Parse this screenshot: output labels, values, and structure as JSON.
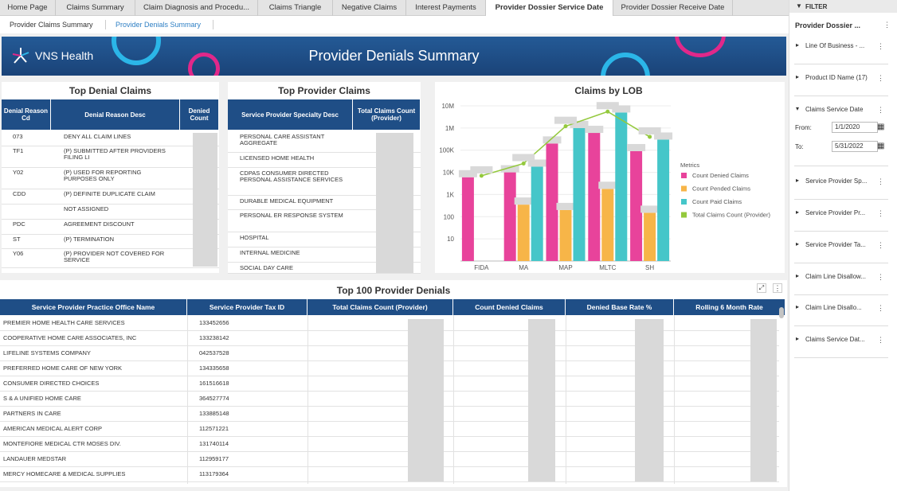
{
  "tabs": [
    "Home Page",
    "Claims Summary",
    "Claim Diagnosis and Procedu...",
    "Claims Triangle",
    "Negative Claims",
    "Interest Payments",
    "Provider Dossier Service Date",
    "Provider Dossier Receive Date"
  ],
  "subtabs": [
    "Provider Claims Summary",
    "Provider Denials Summary"
  ],
  "banner": {
    "logo": "VNS Health",
    "title": "Provider Denials Summary"
  },
  "top_denial": {
    "title": "Top Denial Claims",
    "headers": [
      "Denial Reason Cd",
      "Denial Reason Desc",
      "Denied Count"
    ],
    "rows": [
      {
        "cd": "073",
        "desc": "DENY ALL CLAIM LINES"
      },
      {
        "cd": "TF1",
        "desc": "(P) SUBMITTED AFTER PROVIDERS FILING LI"
      },
      {
        "cd": "Y02",
        "desc": "(P) USED FOR REPORTING PURPOSES ONLY"
      },
      {
        "cd": "CDD",
        "desc": "(P) DEFINITE DUPLICATE CLAIM"
      },
      {
        "cd": "",
        "desc": "NOT ASSIGNED"
      },
      {
        "cd": "PDC",
        "desc": "AGREEMENT DISCOUNT"
      },
      {
        "cd": "ST",
        "desc": "(P) TERMINATION"
      },
      {
        "cd": "Y06",
        "desc": "(P) PROVIDER NOT COVERED FOR SERVICE"
      }
    ]
  },
  "top_provider": {
    "title": "Top Provider Claims",
    "headers": [
      "Service Provider Specialty Desc",
      "Total Claims Count (Provider)"
    ],
    "rows": [
      "PERSONAL CARE ASSISTANT AGGREGATE",
      "LICENSED HOME HEALTH",
      "CDPAS CONSUMER DIRECTED PERSONAL ASSISTANCE SERVICES",
      "DURABLE MEDICAL EQUIPMENT",
      "PERSONAL ER RESPONSE SYSTEM",
      "HOSPITAL",
      "INTERNAL MEDICINE",
      "SOCIAL DAY CARE"
    ]
  },
  "chart_data": {
    "type": "bar",
    "title": "Claims by LOB",
    "categories": [
      "FIDA",
      "MA",
      "MAP",
      "MLTC",
      "SH"
    ],
    "y_scale": "log",
    "ylim": [
      1,
      10000000
    ],
    "y_ticks": [
      "10M",
      "1M",
      "100K",
      "10K",
      "1K",
      "100",
      "10"
    ],
    "legend_title": "Metrics",
    "legend_position": "right",
    "series": [
      {
        "name": "Count Denied Claims",
        "color": "#e8439b",
        "values": [
          6000,
          10000,
          200000,
          600000,
          90000
        ]
      },
      {
        "name": "Count Pended Claims",
        "color": "#f7b548",
        "values": [
          null,
          350,
          200,
          1800,
          150
        ]
      },
      {
        "name": "Count Paid Claims",
        "color": "#45c6c9",
        "values": [
          null,
          18000,
          1000000,
          5000000,
          300000
        ]
      },
      {
        "name": "Total Claims Count (Provider)",
        "color": "#94c93d",
        "type": "line",
        "values": [
          7000,
          25000,
          1200000,
          5500000,
          400000
        ]
      }
    ]
  },
  "top100": {
    "title": "Top 100 Provider Denials",
    "headers": [
      "Service Provider Practice Office Name",
      "Service Provider Tax ID",
      "Total Claims Count (Provider)",
      "Count Denied Claims",
      "Denied Base Rate %",
      "Rolling 6 Month Rate"
    ],
    "rows": [
      {
        "name": "PREMIER HOME HEALTH CARE SERVICES",
        "tax": "133452656"
      },
      {
        "name": "COOPERATIVE HOME CARE ASSOCIATES, INC",
        "tax": "133238142"
      },
      {
        "name": "LIFELINE SYSTEMS COMPANY",
        "tax": "042537528"
      },
      {
        "name": "PREFERRED HOME CARE OF NEW YORK",
        "tax": "134335658"
      },
      {
        "name": "CONSUMER DIRECTED CHOICES",
        "tax": "161516618"
      },
      {
        "name": "S & A UNIFIED HOME CARE",
        "tax": "364527774"
      },
      {
        "name": "PARTNERS IN CARE",
        "tax": "133885148"
      },
      {
        "name": "AMERICAN MEDICAL ALERT CORP",
        "tax": "112571221"
      },
      {
        "name": "MONTEFIORE MEDICAL CTR MOSES DIV.",
        "tax": "131740114"
      },
      {
        "name": "LANDAUER MEDSTAR",
        "tax": "112959177"
      },
      {
        "name": "MERCY HOMECARE & MEDICAL SUPPLIES",
        "tax": "113179364"
      }
    ]
  },
  "filter": {
    "header": "FILTER",
    "title": "Provider Dossier ...",
    "items": [
      "Line Of Business - ...",
      "Product ID Name (17)",
      "Claims Service Date",
      "Service Provider Sp...",
      "Service Provider Pr...",
      "Service Provider Ta...",
      "Claim Line Disallow...",
      "Claim Line Disallo...",
      "Claims Service Dat..."
    ],
    "from_label": "From:",
    "from_value": "1/1/2020",
    "to_label": "To:",
    "to_value": "5/31/2022"
  }
}
